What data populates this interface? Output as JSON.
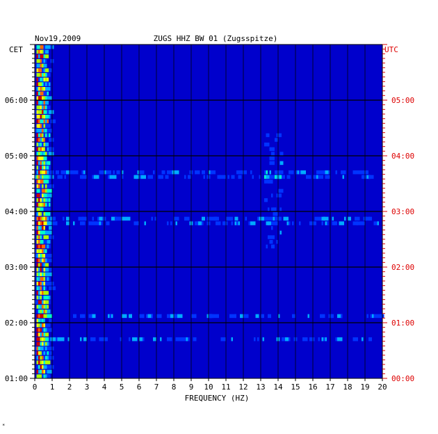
{
  "chart_data": {
    "type": "heatmap",
    "date": "Nov19,2009",
    "title": "ZUGS HHZ BW 01 (Zugsspitze)",
    "xlabel": "FREQUENCY (HZ)",
    "xlim": [
      0,
      20
    ],
    "x_ticks": [
      "0",
      "1",
      "2",
      "3",
      "4",
      "5",
      "6",
      "7",
      "8",
      "9",
      "10",
      "11",
      "12",
      "13",
      "14",
      "15",
      "16",
      "17",
      "18",
      "19",
      "20"
    ],
    "left_axis": {
      "label": "CET",
      "ticks": [
        "06:00",
        "05:00",
        "04:00",
        "03:00",
        "02:00",
        "01:00"
      ],
      "color": "#000000"
    },
    "right_axis": {
      "label": "UTC",
      "ticks": [
        "05:00",
        "04:00",
        "03:00",
        "02:00",
        "01:00",
        "00:00"
      ],
      "color": "#dd0000"
    },
    "time_range_cet": [
      "01:00",
      "07:00"
    ],
    "rows": 72,
    "minutes_per_row": 5,
    "colormap": [
      "#0000cc",
      "#0033ff",
      "#00aaff",
      "#00ffcc",
      "#aaff00",
      "#ffff00",
      "#ff6600",
      "#cc0000"
    ],
    "energy_profile_note": "",
    "stripe_color": "#0000b0"
  }
}
